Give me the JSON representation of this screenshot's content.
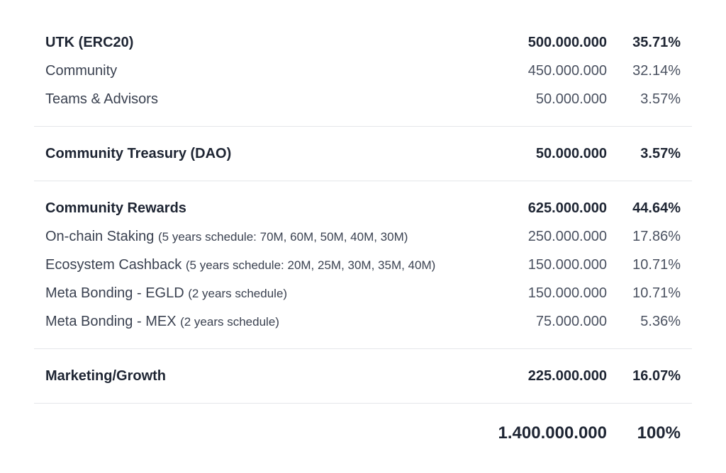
{
  "sections": [
    {
      "header": {
        "label": "UTK (ERC20)",
        "amount": "500.000.000",
        "percent": "35.71%"
      },
      "rows": [
        {
          "label": "Community",
          "note": "",
          "amount": "450.000.000",
          "percent": "32.14%"
        },
        {
          "label": "Teams & Advisors",
          "note": "",
          "amount": "50.000.000",
          "percent": "3.57%"
        }
      ]
    },
    {
      "header": {
        "label": "Community Treasury (DAO)",
        "amount": "50.000.000",
        "percent": "3.57%"
      },
      "rows": []
    },
    {
      "header": {
        "label": "Community Rewards",
        "amount": "625.000.000",
        "percent": "44.64%"
      },
      "rows": [
        {
          "label": "On-chain Staking",
          "note": "(5 years schedule: 70M, 60M, 50M, 40M, 30M)",
          "amount": "250.000.000",
          "percent": "17.86%"
        },
        {
          "label": "Ecosystem Cashback",
          "note": "(5 years schedule: 20M, 25M, 30M, 35M, 40M)",
          "amount": "150.000.000",
          "percent": "10.71%"
        },
        {
          "label": "Meta Bonding - EGLD",
          "note": "(2 years schedule)",
          "amount": "150.000.000",
          "percent": "10.71%"
        },
        {
          "label": "Meta Bonding - MEX",
          "note": "(2 years schedule)",
          "amount": "75.000.000",
          "percent": "5.36%"
        }
      ]
    },
    {
      "header": {
        "label": "Marketing/Growth",
        "amount": "225.000.000",
        "percent": "16.07%"
      },
      "rows": []
    }
  ],
  "total": {
    "amount": "1.400.000.000",
    "percent": "100%"
  }
}
